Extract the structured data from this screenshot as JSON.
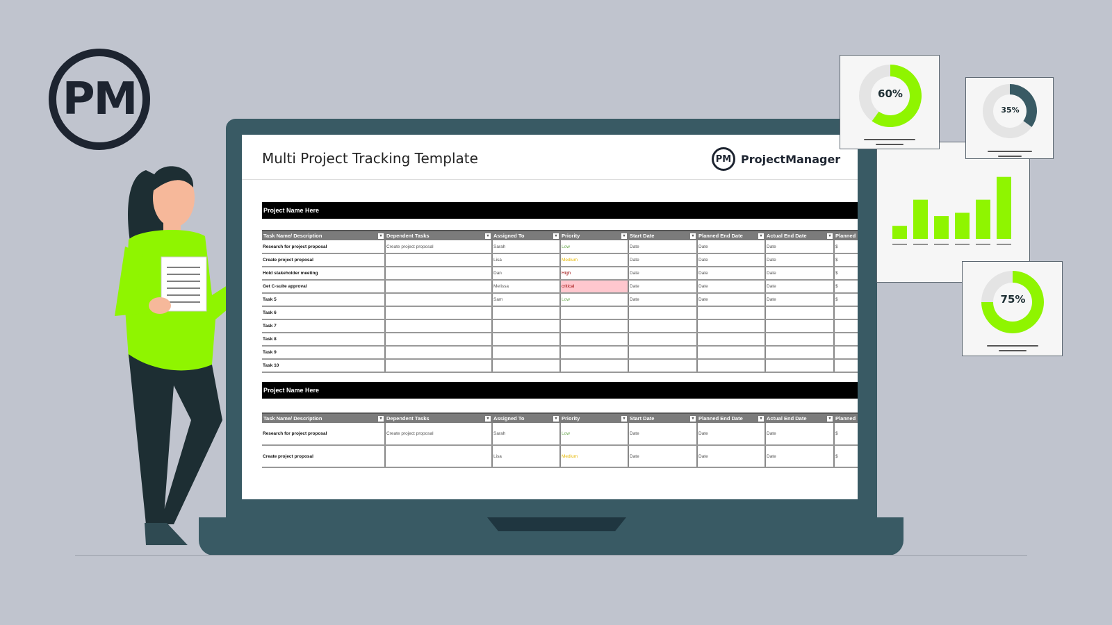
{
  "logo": {
    "text": "PM"
  },
  "screen": {
    "title": "Multi Project Tracking Template",
    "brand_mark": "PM",
    "brand_name": "ProjectManager"
  },
  "columns": [
    "Task Name/ Description",
    "Dependent Tasks",
    "Assigned To",
    "Priority",
    "Start Date",
    "Planned End Date",
    "Actual End Date",
    "Planned"
  ],
  "projects": [
    {
      "name": "Project Name Here",
      "rows": [
        [
          "Research for project proposal",
          "Create project proposal",
          "Sarah",
          "Low",
          "Date",
          "Date",
          "Date",
          "$"
        ],
        [
          "Create project proposal",
          "",
          "Lisa",
          "Medium",
          "Date",
          "Date",
          "Date",
          "$"
        ],
        [
          "Hold stakeholder meeting",
          "",
          "Dan",
          "High",
          "Date",
          "Date",
          "Date",
          "$"
        ],
        [
          "Get C-suite approval",
          "",
          "Melissa",
          "critical",
          "Date",
          "Date",
          "Date",
          "$"
        ],
        [
          "Task 5",
          "",
          "Sam",
          "Low",
          "Date",
          "Date",
          "Date",
          "$"
        ],
        [
          "Task 6",
          "",
          "",
          "",
          "",
          "",
          "",
          ""
        ],
        [
          "Task 7",
          "",
          "",
          "",
          "",
          "",
          "",
          ""
        ],
        [
          "Task 8",
          "",
          "",
          "",
          "",
          "",
          "",
          ""
        ],
        [
          "Task 9",
          "",
          "",
          "",
          "",
          "",
          "",
          ""
        ],
        [
          "Task 10",
          "",
          "",
          "",
          "",
          "",
          "",
          ""
        ]
      ]
    },
    {
      "name": "Project Name Here",
      "rows": [
        [
          "Research for project proposal",
          "Create project proposal",
          "Sarah",
          "Low",
          "Date",
          "Date",
          "Date",
          "$"
        ],
        [
          "Create project proposal",
          "",
          "Lisa",
          "Medium",
          "Date",
          "Date",
          "Date",
          "$"
        ]
      ]
    }
  ],
  "priority_colors": {
    "Low": "#6aa84f",
    "Medium": "#e6b800",
    "High": "#990000",
    "critical": "#990000"
  },
  "critical_bg": "#ffc7ce",
  "widgets": {
    "donut_60": {
      "label": "60%",
      "value": 60,
      "color": "#8ff500"
    },
    "donut_35": {
      "label": "35%",
      "value": 35,
      "color": "#395a64"
    },
    "donut_75": {
      "label": "75%",
      "value": 75,
      "color": "#8ff500"
    },
    "bars": {
      "values": [
        2,
        6,
        3.5,
        4,
        6,
        9.5
      ],
      "color": "#8ff500"
    }
  }
}
